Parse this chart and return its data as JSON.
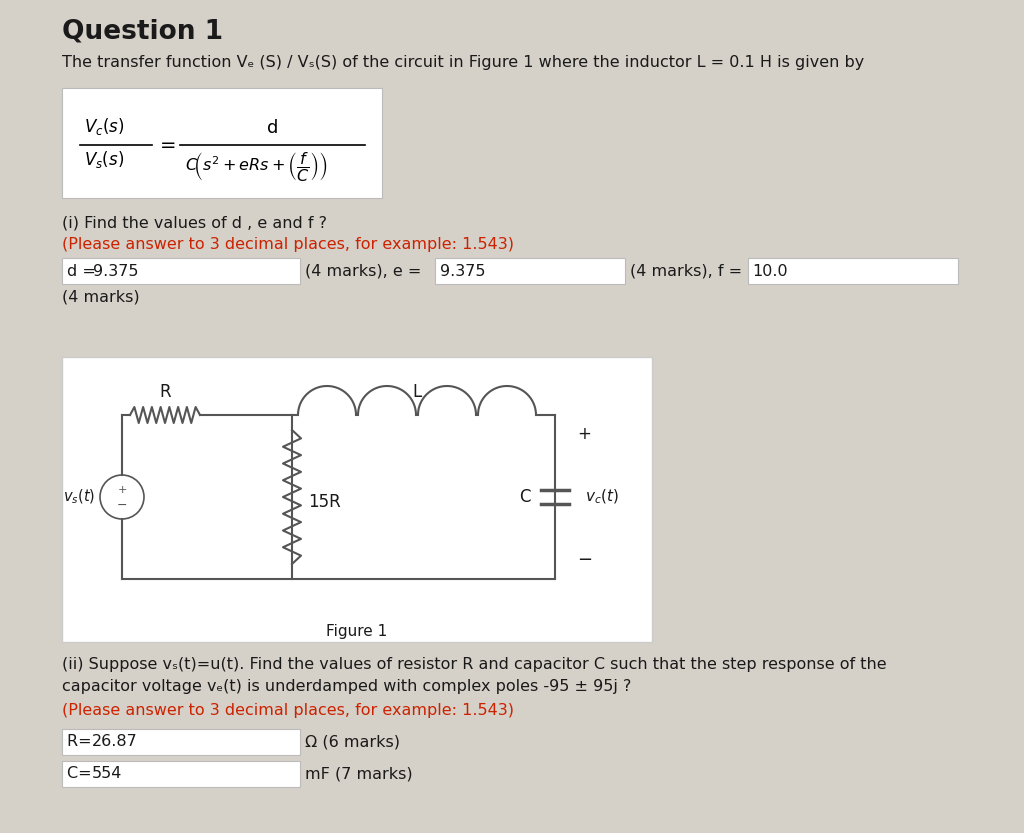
{
  "bg_color": "#d5d0c8",
  "title": "Question 1",
  "intro_text": "The transfer function Vₑ (S) / Vₛ(S) of the circuit in Figure 1 where the inductor L = 0.1 H is given by",
  "part_i_label": "(i) Find the values of d , e and f ?",
  "please_note": "(Please answer to 3 decimal places, for example: 1.543)",
  "d_val": "9.375",
  "e_val": "9.375",
  "f_val": "10.0",
  "marks_d": "(4 marks), e = ",
  "marks_e": "(4 marks), f = ",
  "marks_4": "(4 marks)",
  "figure_label": "Figure 1",
  "part_ii_text1": "(ii) Suppose vₛ(t)=u(t). Find the values of resistor R and capacitor C such that the step response of the",
  "part_ii_text2": "capacitor voltage vₑ(t) is underdamped with complex poles -95 ± 95j ?",
  "please_note2": "(Please answer to 3 decimal places, for example: 1.543)",
  "R_val": "26.87",
  "C_val": "554",
  "R_marks": "Ω (6 marks)",
  "C_marks": "mF (7 marks)",
  "red_color": "#cc2200",
  "text_color": "#1a1a1a"
}
